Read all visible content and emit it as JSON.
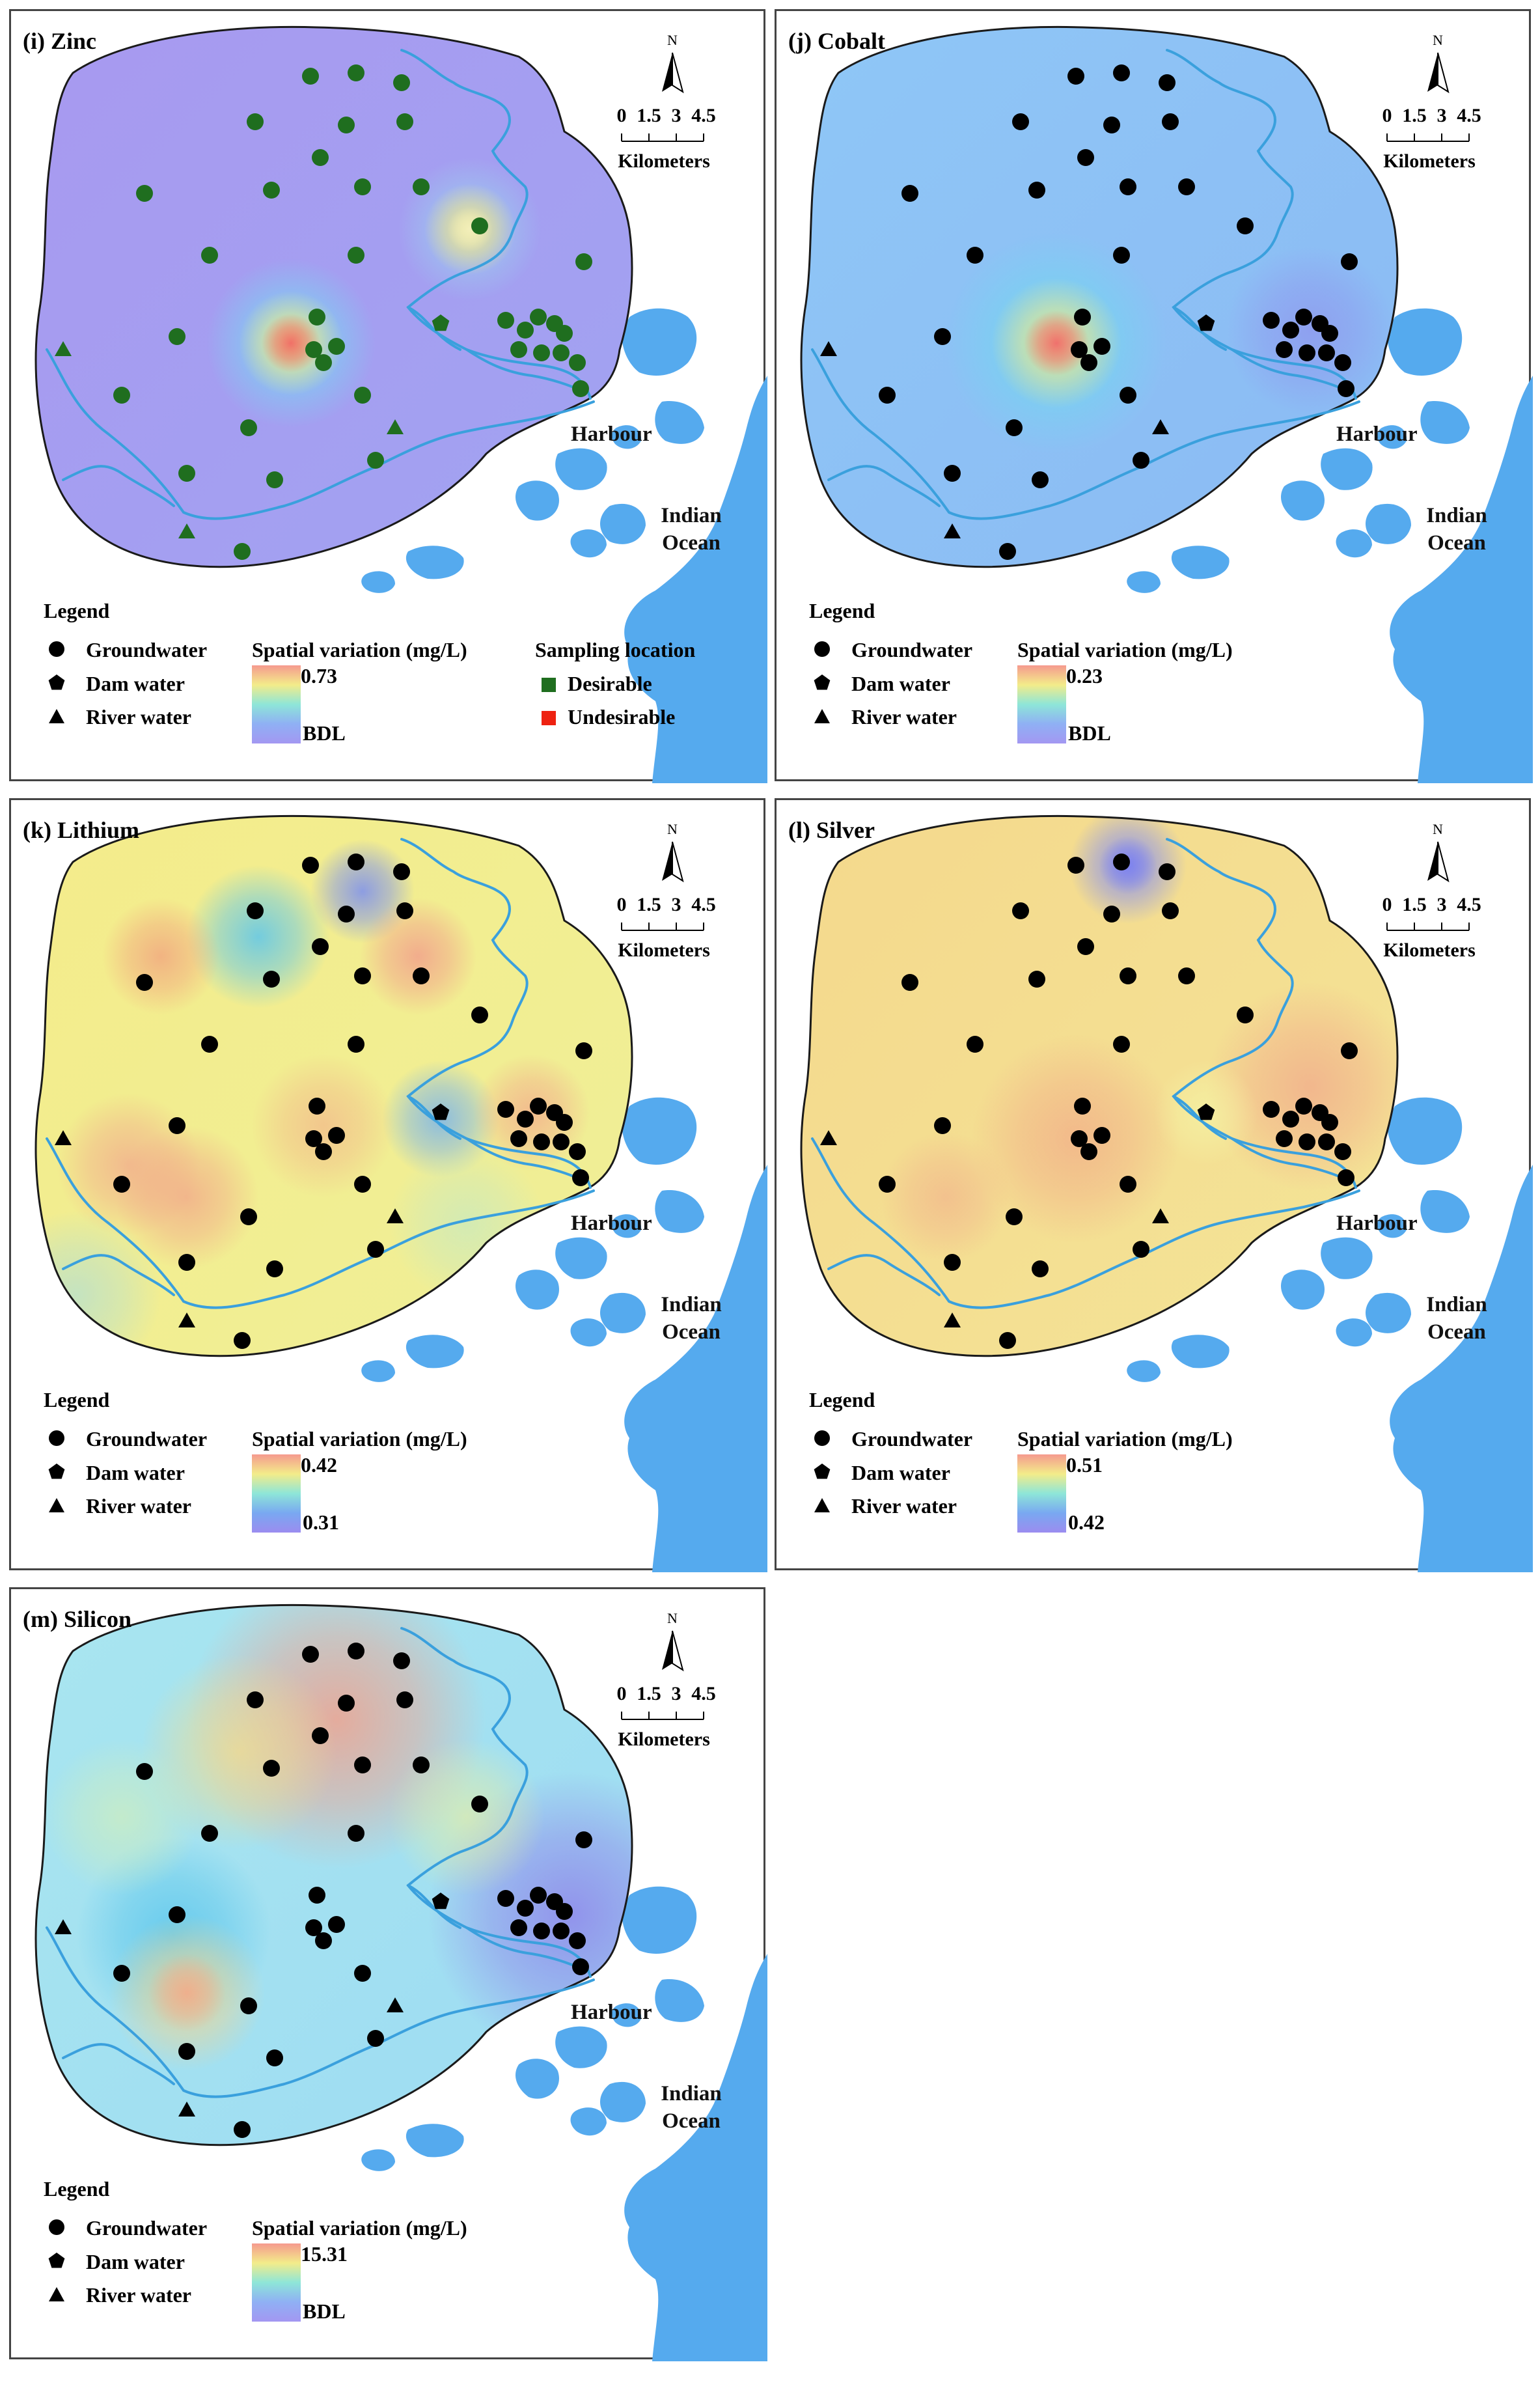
{
  "common": {
    "north_label": "N",
    "scale_ticks": [
      "0",
      "1.5",
      "3",
      "4.5"
    ],
    "scale_unit": "Kilometers",
    "legend_title": "Legend",
    "legend_items": [
      "Groundwater",
      "Dam water",
      "River water"
    ],
    "spatial_title": "Spatial variation (mg/L)",
    "harbour": "Harbour",
    "ocean_line1": "Indian",
    "ocean_line2": "Ocean",
    "colors": {
      "land_ocean": "#55aaee",
      "river": "#3aa0dd",
      "marker": "#000000",
      "desirable": "#1f6e1f",
      "undesirable": "#ee2211"
    }
  },
  "panels": [
    {
      "id": "zinc",
      "title": "(i) Zinc",
      "max_label": "0.73",
      "min_label": "BDL",
      "sampling_title": "Sampling location",
      "desirable": "Desirable",
      "undesirable": "Undesirable",
      "marker_color": "#1f6e1f"
    },
    {
      "id": "cobalt",
      "title": "(j) Cobalt",
      "max_label": "0.23",
      "min_label": "BDL"
    },
    {
      "id": "lithium",
      "title": "(k) Lithium",
      "max_label": "0.42",
      "min_label": "0.31"
    },
    {
      "id": "silver",
      "title": "(l) Silver",
      "max_label": "0.51",
      "min_label": "0.42"
    },
    {
      "id": "silicon",
      "title": "(m) Silicon",
      "max_label": "15.31",
      "min_label": "BDL"
    }
  ]
}
